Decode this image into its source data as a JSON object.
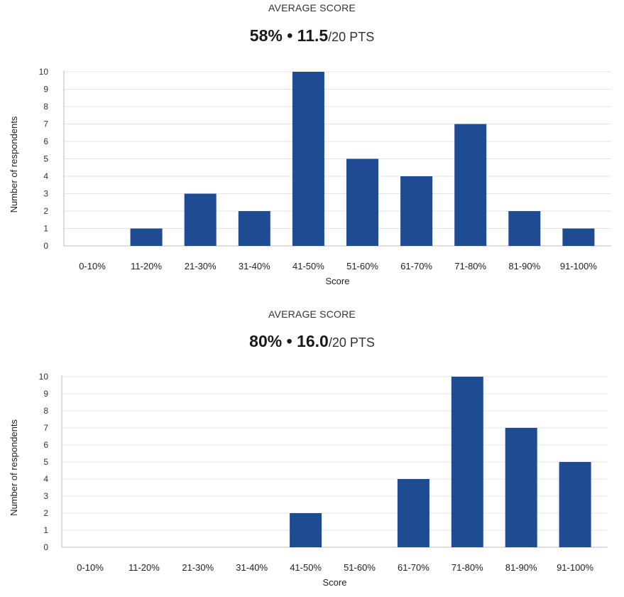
{
  "chart_data": [
    {
      "type": "bar",
      "heading": "AVERAGE SCORE",
      "summary": {
        "percent": "58%",
        "separator": "•",
        "points": "11.5",
        "points_suffix": "/20 PTS"
      },
      "categories": [
        "0-10%",
        "11-20%",
        "21-30%",
        "31-40%",
        "41-50%",
        "51-60%",
        "61-70%",
        "71-80%",
        "81-90%",
        "91-100%"
      ],
      "values": [
        0,
        1,
        3,
        2,
        10,
        5,
        4,
        7,
        2,
        1
      ],
      "xlabel": "Score",
      "ylabel": "Number of respondents",
      "ylim": [
        0,
        10
      ],
      "yticks": [
        0,
        1,
        2,
        3,
        4,
        5,
        6,
        7,
        8,
        9,
        10
      ],
      "grid": true,
      "bar_color": "#1f4b93"
    },
    {
      "type": "bar",
      "heading": "AVERAGE SCORE",
      "summary": {
        "percent": "80%",
        "separator": "•",
        "points": "16.0",
        "points_suffix": "/20 PTS"
      },
      "categories": [
        "0-10%",
        "11-20%",
        "21-30%",
        "31-40%",
        "41-50%",
        "51-60%",
        "61-70%",
        "71-80%",
        "81-90%",
        "91-100%"
      ],
      "values": [
        0,
        0,
        0,
        0,
        2,
        0,
        4,
        10,
        7,
        5
      ],
      "xlabel": "Score",
      "ylabel": "Number of respondents",
      "ylim": [
        0,
        10
      ],
      "yticks": [
        0,
        1,
        2,
        3,
        4,
        5,
        6,
        7,
        8,
        9,
        10
      ],
      "grid": true,
      "bar_color": "#1f4b93"
    }
  ]
}
